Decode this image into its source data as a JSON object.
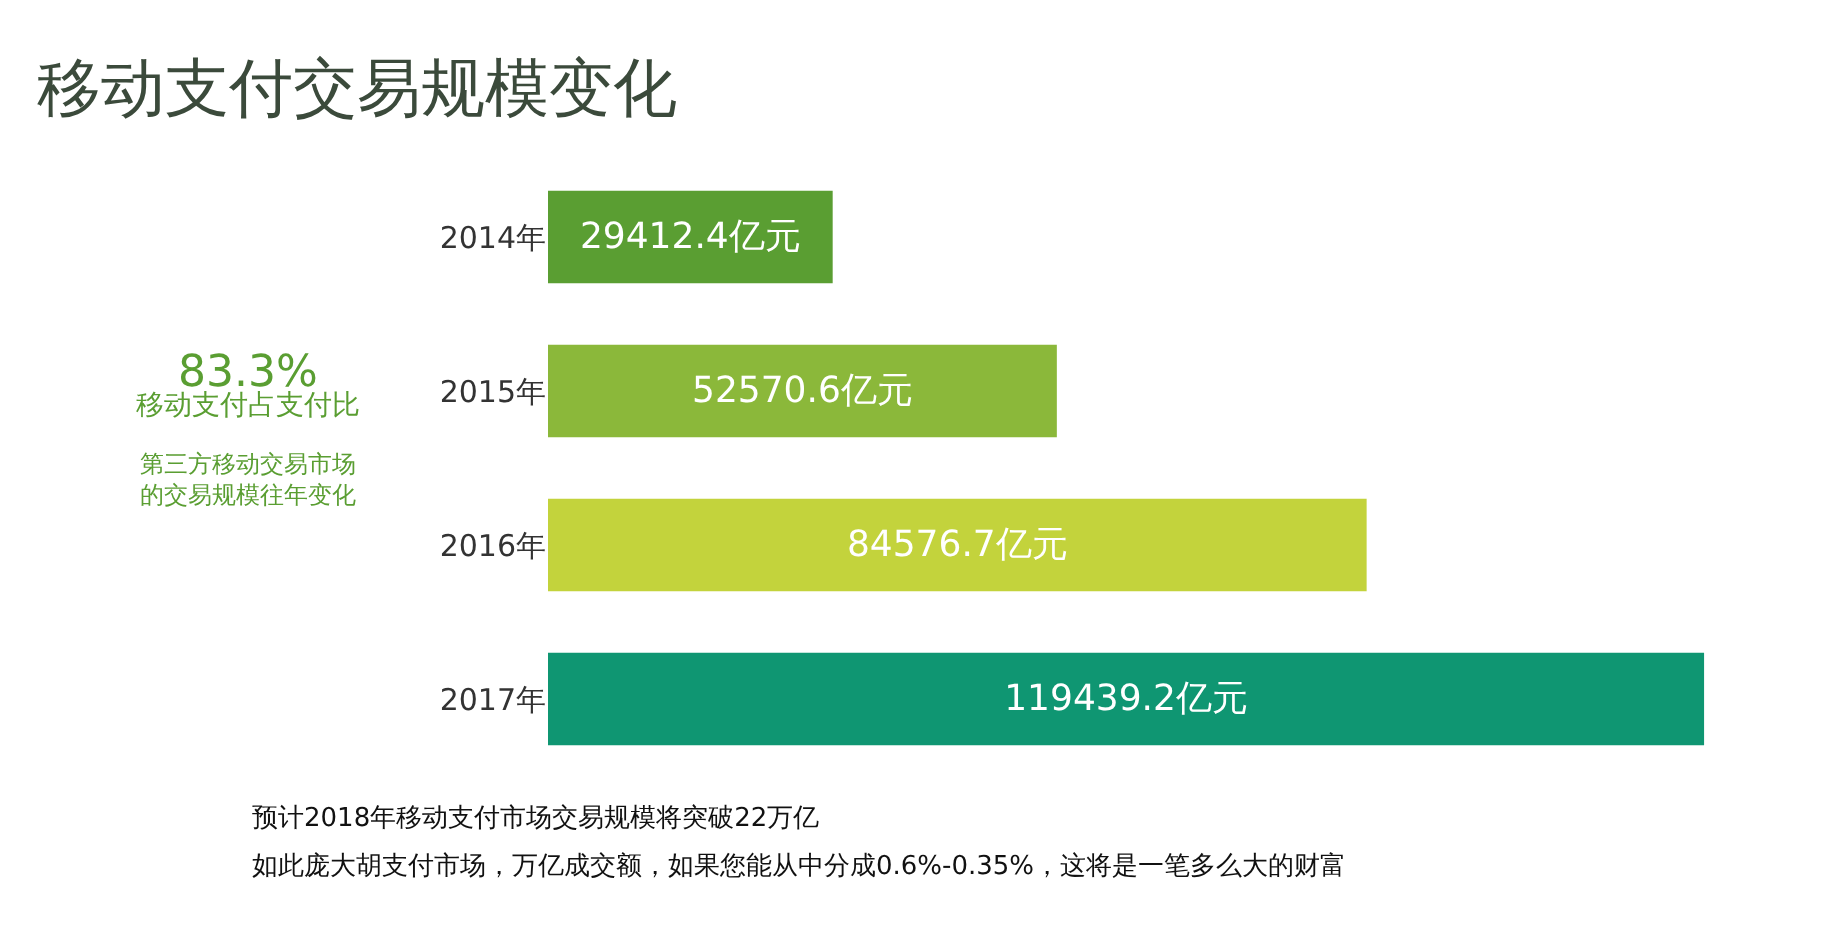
{
  "chart_data": {
    "type": "bar",
    "orientation": "horizontal",
    "title": "移动支付交易规模变化",
    "categories": [
      "2014年",
      "2015年",
      "2016年",
      "2017年"
    ],
    "values": [
      29412.4,
      52570.6,
      84576.7,
      119439.2
    ],
    "value_labels": [
      "29412.4亿元",
      "52570.6亿元",
      "84576.7亿元",
      "119439.2亿元"
    ],
    "colors": [
      "#5a9e32",
      "#8bb83a",
      "#c3d33c",
      "#0f9672"
    ],
    "annotations": [
      "83.3%",
      "移动支付占支付比",
      "第三方移动交易市场的交易规模往年变化",
      "预计2018年移动支付市场交易规模将突破22万亿",
      "如此庞大胡支付市场，万亿成交额，如果您能从中分成0.6%-0.35%，这将是一笔多么大的财富"
    ],
    "legend": false
  }
}
